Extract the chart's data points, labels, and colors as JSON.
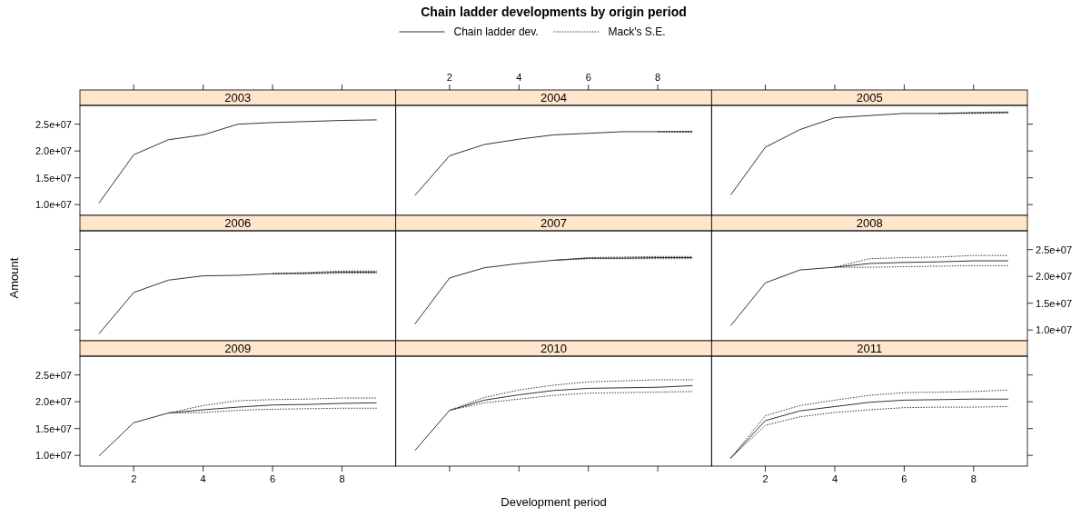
{
  "chart_data": [
    {
      "type": "line",
      "title": "2003",
      "annotations": [
        "Chain ladder developments by origin period"
      ],
      "legend": "top",
      "x": [
        1,
        2,
        3,
        4,
        5,
        6,
        7,
        8,
        9
      ],
      "xlim": [
        0.45,
        9.55
      ],
      "xticks": [
        2,
        4,
        6,
        8
      ],
      "ylim": [
        8000000,
        28500000
      ],
      "yticks": [
        {
          "value": 10000000,
          "label": "1.0e+07"
        },
        {
          "value": 15000000,
          "label": "1.5e+07"
        },
        {
          "value": 20000000,
          "label": "2.0e+07"
        },
        {
          "value": 25000000,
          "label": "2.5e+07"
        }
      ],
      "tick_labels": "y",
      "series": [
        {
          "name": "Chain ladder dev.",
          "color": "#333333",
          "line_style": "solid",
          "values": [
            10300000,
            19300000,
            22100000,
            23000000,
            25000000,
            25300000,
            25500000,
            25700000,
            25800000
          ]
        },
        {
          "name": "Mack's S.E.",
          "color": "#333333",
          "line_style": "dotted",
          "values": [
            null,
            null,
            null,
            null,
            null,
            null,
            null,
            null,
            null
          ]
        }
      ]
    },
    {
      "type": "line",
      "title": "2004",
      "x": [
        1,
        2,
        3,
        4,
        5,
        6,
        7,
        8,
        9
      ],
      "xlim": [
        0.45,
        9.55
      ],
      "xticks": [
        2,
        4,
        6,
        8
      ],
      "ylim": [
        8000000,
        28500000
      ],
      "tick_labels": "x",
      "series": [
        {
          "color": "#333333",
          "line_style": "solid",
          "values": [
            11700000,
            19100000,
            21200000,
            22200000,
            23000000,
            23300000,
            23600000,
            23600000,
            23600000
          ]
        },
        {
          "color": "#333333",
          "line_style": "dotted",
          "values": [
            null,
            null,
            null,
            null,
            null,
            null,
            null,
            23600000,
            23700000
          ]
        },
        {
          "color": "#333333",
          "line_style": "dotted",
          "values": [
            null,
            null,
            null,
            null,
            null,
            null,
            null,
            23600000,
            23500000
          ]
        }
      ]
    },
    {
      "type": "line",
      "title": "2005",
      "x": [
        1,
        2,
        3,
        4,
        5,
        6,
        7,
        8,
        9
      ],
      "xlim": [
        0.45,
        9.55
      ],
      "xticks": [
        2,
        4,
        6,
        8
      ],
      "ylim": [
        8000000,
        28500000
      ],
      "yticks": [
        {
          "value": 10000000,
          "label": null
        },
        {
          "value": 15000000,
          "label": null
        },
        {
          "value": 20000000,
          "label": null
        },
        {
          "value": 25000000,
          "label": null
        }
      ],
      "tick_labels": false,
      "series": [
        {
          "color": "#333333",
          "line_style": "solid",
          "values": [
            11800000,
            20700000,
            24000000,
            26200000,
            26600000,
            27000000,
            27000000,
            27100000,
            27200000
          ]
        },
        {
          "color": "#333333",
          "line_style": "dotted",
          "values": [
            null,
            null,
            null,
            null,
            null,
            null,
            27000000,
            27200000,
            27300000
          ]
        },
        {
          "color": "#333333",
          "line_style": "dotted",
          "values": [
            null,
            null,
            null,
            null,
            null,
            null,
            27000000,
            27000000,
            27100000
          ]
        }
      ]
    },
    {
      "type": "line",
      "title": "2006",
      "ylabel": "Amount",
      "x": [
        1,
        2,
        3,
        4,
        5,
        6,
        7,
        8,
        9
      ],
      "xlim": [
        0.45,
        9.55
      ],
      "ylim": [
        8000000,
        28500000
      ],
      "yticks": [
        {
          "value": 10000000,
          "label": null
        },
        {
          "value": 15000000,
          "label": null
        },
        {
          "value": 20000000,
          "label": null
        },
        {
          "value": 25000000,
          "label": null
        }
      ],
      "tick_labels": false,
      "series": [
        {
          "color": "#333333",
          "line_style": "solid",
          "values": [
            9300000,
            17000000,
            19300000,
            20100000,
            20200000,
            20500000,
            20600000,
            20800000,
            20800000
          ]
        },
        {
          "color": "#333333",
          "line_style": "dotted",
          "values": [
            null,
            null,
            null,
            null,
            null,
            20500000,
            20700000,
            21000000,
            21000000
          ]
        },
        {
          "color": "#333333",
          "line_style": "dotted",
          "values": [
            null,
            null,
            null,
            null,
            null,
            20500000,
            20500000,
            20600000,
            20600000
          ]
        }
      ]
    },
    {
      "type": "line",
      "title": "2007",
      "x": [
        1,
        2,
        3,
        4,
        5,
        6,
        7,
        8,
        9
      ],
      "xlim": [
        0.45,
        9.55
      ],
      "ylim": [
        8000000,
        28500000
      ],
      "series": [
        {
          "color": "#333333",
          "line_style": "solid",
          "values": [
            11100000,
            19700000,
            21600000,
            22400000,
            23000000,
            23400000,
            23400000,
            23500000,
            23500000
          ]
        },
        {
          "color": "#333333",
          "line_style": "dotted",
          "values": [
            null,
            null,
            null,
            null,
            23000000,
            23500000,
            23600000,
            23700000,
            23700000
          ]
        },
        {
          "color": "#333333",
          "line_style": "dotted",
          "values": [
            null,
            null,
            null,
            null,
            23000000,
            23300000,
            23300000,
            23300000,
            23300000
          ]
        }
      ]
    },
    {
      "type": "line",
      "title": "2008",
      "x": [
        1,
        2,
        3,
        4,
        5,
        6,
        7,
        8,
        9
      ],
      "xlim": [
        0.45,
        9.55
      ],
      "ylim": [
        8000000,
        28500000
      ],
      "yticks": [
        {
          "value": 10000000,
          "label": "1.0e+07"
        },
        {
          "value": 15000000,
          "label": "1.5e+07"
        },
        {
          "value": 20000000,
          "label": "2.0e+07"
        },
        {
          "value": 25000000,
          "label": "2.5e+07"
        }
      ],
      "tick_labels": "y",
      "series": [
        {
          "color": "#333333",
          "line_style": "solid",
          "values": [
            10800000,
            18800000,
            21200000,
            21700000,
            22400000,
            22600000,
            22700000,
            22900000,
            22900000
          ]
        },
        {
          "color": "#333333",
          "line_style": "dotted",
          "values": [
            null,
            null,
            null,
            21700000,
            23300000,
            23500000,
            23600000,
            23900000,
            23900000
          ]
        },
        {
          "color": "#333333",
          "line_style": "dotted",
          "values": [
            null,
            null,
            null,
            21700000,
            21700000,
            21800000,
            21900000,
            22000000,
            22000000
          ]
        }
      ]
    },
    {
      "type": "line",
      "title": "2009",
      "x": [
        1,
        2,
        3,
        4,
        5,
        6,
        7,
        8,
        9
      ],
      "xlim": [
        0.45,
        9.55
      ],
      "xticks": [
        2,
        4,
        6,
        8
      ],
      "ylim": [
        8000000,
        28500000
      ],
      "yticks": [
        {
          "value": 10000000,
          "label": "1.0e+07"
        },
        {
          "value": 15000000,
          "label": "1.5e+07"
        },
        {
          "value": 20000000,
          "label": "2.0e+07"
        },
        {
          "value": 25000000,
          "label": "2.5e+07"
        }
      ],
      "series": [
        {
          "color": "#333333",
          "line_style": "solid",
          "values": [
            9900000,
            16100000,
            17900000,
            18500000,
            19000000,
            19400000,
            19500000,
            19700000,
            19800000
          ]
        },
        {
          "color": "#333333",
          "line_style": "dotted",
          "values": [
            null,
            null,
            17900000,
            19300000,
            20200000,
            20400000,
            20500000,
            20700000,
            20700000
          ]
        },
        {
          "color": "#333333",
          "line_style": "dotted",
          "values": [
            null,
            null,
            17900000,
            18000000,
            18400000,
            18600000,
            18700000,
            18800000,
            18800000
          ]
        }
      ]
    },
    {
      "type": "line",
      "title": "2010",
      "xlabel": "Development period",
      "x": [
        1,
        2,
        3,
        4,
        5,
        6,
        7,
        8,
        9
      ],
      "xlim": [
        0.45,
        9.55
      ],
      "xticks": [
        2,
        4,
        6,
        8
      ],
      "ylim": [
        8000000,
        28500000
      ],
      "tick_labels": false,
      "series": [
        {
          "color": "#333333",
          "line_style": "solid",
          "values": [
            10900000,
            18400000,
            20300000,
            21300000,
            22100000,
            22500000,
            22600000,
            22700000,
            23000000
          ]
        },
        {
          "color": "#333333",
          "line_style": "dotted",
          "values": [
            null,
            18400000,
            20800000,
            22200000,
            23100000,
            23700000,
            23900000,
            24100000,
            24100000
          ]
        },
        {
          "color": "#333333",
          "line_style": "dotted",
          "values": [
            null,
            18400000,
            19800000,
            20500000,
            21200000,
            21600000,
            21700000,
            21800000,
            21900000
          ]
        }
      ]
    },
    {
      "type": "line",
      "title": "2011",
      "x": [
        1,
        2,
        3,
        4,
        5,
        6,
        7,
        8,
        9
      ],
      "xlim": [
        0.45,
        9.55
      ],
      "xticks": [
        2,
        4,
        6,
        8
      ],
      "ylim": [
        8000000,
        28500000
      ],
      "yticks": [
        {
          "value": 10000000,
          "label": null
        },
        {
          "value": 15000000,
          "label": null
        },
        {
          "value": 20000000,
          "label": null
        },
        {
          "value": 25000000,
          "label": null
        }
      ],
      "tick_labels": "x",
      "series": [
        {
          "color": "#333333",
          "line_style": "solid",
          "values": [
            9500000,
            16500000,
            18300000,
            19100000,
            19900000,
            20300000,
            20400000,
            20500000,
            20500000
          ]
        },
        {
          "color": "#333333",
          "line_style": "dotted",
          "values": [
            9500000,
            17400000,
            19300000,
            20300000,
            21200000,
            21700000,
            21800000,
            21900000,
            22200000
          ]
        },
        {
          "color": "#333333",
          "line_style": "dotted",
          "values": [
            9500000,
            15600000,
            17200000,
            18000000,
            18500000,
            18900000,
            19000000,
            19000000,
            19100000
          ]
        }
      ]
    }
  ]
}
